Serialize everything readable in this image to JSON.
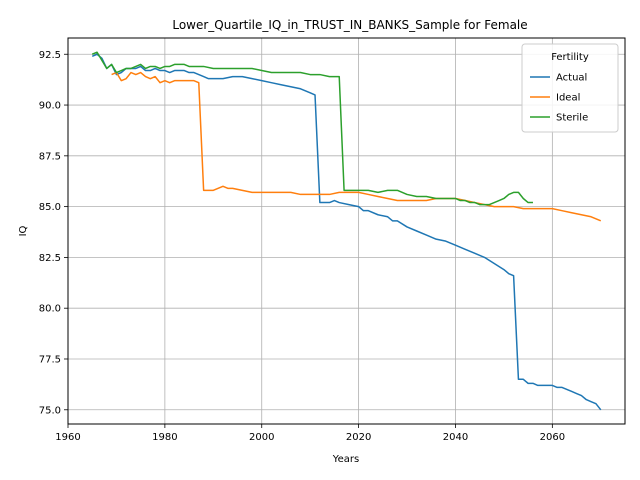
{
  "chart_data": {
    "type": "line",
    "title": "Lower_Quartile_IQ_in_TRUST_IN_BANKS_Sample for Female",
    "xlabel": "Years",
    "ylabel": "IQ",
    "xlim": [
      1960,
      2075
    ],
    "ylim": [
      74.3,
      93.3
    ],
    "xticks": [
      1960,
      1980,
      2000,
      2020,
      2040,
      2060
    ],
    "yticks": [
      75.0,
      77.5,
      80.0,
      82.5,
      85.0,
      87.5,
      90.0,
      92.5
    ],
    "ytick_labels": [
      "75.0",
      "77.5",
      "80.0",
      "82.5",
      "85.0",
      "87.5",
      "90.0",
      "92.5"
    ],
    "grid": true,
    "legend": {
      "title": "Fertility",
      "placement": "top-right"
    },
    "series": [
      {
        "name": "Actual",
        "color": "#1f77b4",
        "points": [
          [
            1965,
            92.4
          ],
          [
            1966,
            92.5
          ],
          [
            1967,
            92.3
          ],
          [
            1968,
            91.8
          ],
          [
            1969,
            92.0
          ],
          [
            1970,
            91.5
          ],
          [
            1971,
            91.6
          ],
          [
            1972,
            91.8
          ],
          [
            1973,
            91.8
          ],
          [
            1974,
            91.8
          ],
          [
            1975,
            91.9
          ],
          [
            1976,
            91.7
          ],
          [
            1977,
            91.7
          ],
          [
            1978,
            91.8
          ],
          [
            1979,
            91.7
          ],
          [
            1980,
            91.7
          ],
          [
            1981,
            91.6
          ],
          [
            1982,
            91.7
          ],
          [
            1983,
            91.7
          ],
          [
            1984,
            91.7
          ],
          [
            1985,
            91.6
          ],
          [
            1986,
            91.6
          ],
          [
            1987,
            91.5
          ],
          [
            1988,
            91.4
          ],
          [
            1989,
            91.3
          ],
          [
            1990,
            91.3
          ],
          [
            1992,
            91.3
          ],
          [
            1994,
            91.4
          ],
          [
            1996,
            91.4
          ],
          [
            1998,
            91.3
          ],
          [
            2000,
            91.2
          ],
          [
            2002,
            91.1
          ],
          [
            2004,
            91.0
          ],
          [
            2006,
            90.9
          ],
          [
            2008,
            90.8
          ],
          [
            2010,
            90.6
          ],
          [
            2011,
            90.5
          ],
          [
            2012,
            85.2
          ],
          [
            2013,
            85.2
          ],
          [
            2014,
            85.2
          ],
          [
            2015,
            85.3
          ],
          [
            2016,
            85.2
          ],
          [
            2018,
            85.1
          ],
          [
            2020,
            85.0
          ],
          [
            2021,
            84.8
          ],
          [
            2022,
            84.8
          ],
          [
            2024,
            84.6
          ],
          [
            2026,
            84.5
          ],
          [
            2027,
            84.3
          ],
          [
            2028,
            84.3
          ],
          [
            2030,
            84.0
          ],
          [
            2032,
            83.8
          ],
          [
            2034,
            83.6
          ],
          [
            2036,
            83.4
          ],
          [
            2038,
            83.3
          ],
          [
            2040,
            83.1
          ],
          [
            2042,
            82.9
          ],
          [
            2044,
            82.7
          ],
          [
            2046,
            82.5
          ],
          [
            2048,
            82.2
          ],
          [
            2050,
            81.9
          ],
          [
            2051,
            81.7
          ],
          [
            2052,
            81.6
          ],
          [
            2053,
            76.5
          ],
          [
            2054,
            76.5
          ],
          [
            2055,
            76.3
          ],
          [
            2056,
            76.3
          ],
          [
            2057,
            76.2
          ],
          [
            2058,
            76.2
          ],
          [
            2059,
            76.2
          ],
          [
            2060,
            76.2
          ],
          [
            2061,
            76.1
          ],
          [
            2062,
            76.1
          ],
          [
            2063,
            76.0
          ],
          [
            2064,
            75.9
          ],
          [
            2065,
            75.8
          ],
          [
            2066,
            75.7
          ],
          [
            2067,
            75.5
          ],
          [
            2068,
            75.4
          ],
          [
            2069,
            75.3
          ],
          [
            2070,
            75.0
          ]
        ]
      },
      {
        "name": "Ideal",
        "color": "#ff7f0e",
        "points": [
          [
            1969,
            91.5
          ],
          [
            1970,
            91.6
          ],
          [
            1971,
            91.2
          ],
          [
            1972,
            91.3
          ],
          [
            1973,
            91.6
          ],
          [
            1974,
            91.5
          ],
          [
            1975,
            91.6
          ],
          [
            1976,
            91.4
          ],
          [
            1977,
            91.3
          ],
          [
            1978,
            91.4
          ],
          [
            1979,
            91.1
          ],
          [
            1980,
            91.2
          ],
          [
            1981,
            91.1
          ],
          [
            1982,
            91.2
          ],
          [
            1983,
            91.2
          ],
          [
            1984,
            91.2
          ],
          [
            1985,
            91.2
          ],
          [
            1986,
            91.2
          ],
          [
            1987,
            91.1
          ],
          [
            1988,
            85.8
          ],
          [
            1989,
            85.8
          ],
          [
            1990,
            85.8
          ],
          [
            1991,
            85.9
          ],
          [
            1992,
            86.0
          ],
          [
            1993,
            85.9
          ],
          [
            1994,
            85.9
          ],
          [
            1996,
            85.8
          ],
          [
            1998,
            85.7
          ],
          [
            2000,
            85.7
          ],
          [
            2002,
            85.7
          ],
          [
            2004,
            85.7
          ],
          [
            2006,
            85.7
          ],
          [
            2008,
            85.6
          ],
          [
            2010,
            85.6
          ],
          [
            2012,
            85.6
          ],
          [
            2014,
            85.6
          ],
          [
            2016,
            85.7
          ],
          [
            2018,
            85.7
          ],
          [
            2020,
            85.7
          ],
          [
            2022,
            85.6
          ],
          [
            2024,
            85.5
          ],
          [
            2026,
            85.4
          ],
          [
            2028,
            85.3
          ],
          [
            2030,
            85.3
          ],
          [
            2032,
            85.3
          ],
          [
            2034,
            85.3
          ],
          [
            2036,
            85.4
          ],
          [
            2038,
            85.4
          ],
          [
            2040,
            85.4
          ],
          [
            2042,
            85.3
          ],
          [
            2044,
            85.2
          ],
          [
            2046,
            85.1
          ],
          [
            2048,
            85.0
          ],
          [
            2050,
            85.0
          ],
          [
            2052,
            85.0
          ],
          [
            2054,
            84.9
          ],
          [
            2056,
            84.9
          ],
          [
            2058,
            84.9
          ],
          [
            2060,
            84.9
          ],
          [
            2062,
            84.8
          ],
          [
            2064,
            84.7
          ],
          [
            2066,
            84.6
          ],
          [
            2068,
            84.5
          ],
          [
            2070,
            84.3
          ]
        ]
      },
      {
        "name": "Sterile",
        "color": "#2ca02c",
        "points": [
          [
            1965,
            92.5
          ],
          [
            1966,
            92.6
          ],
          [
            1967,
            92.2
          ],
          [
            1968,
            91.8
          ],
          [
            1969,
            92.0
          ],
          [
            1970,
            91.6
          ],
          [
            1971,
            91.7
          ],
          [
            1972,
            91.8
          ],
          [
            1973,
            91.8
          ],
          [
            1974,
            91.9
          ],
          [
            1975,
            92.0
          ],
          [
            1976,
            91.8
          ],
          [
            1977,
            91.9
          ],
          [
            1978,
            91.9
          ],
          [
            1979,
            91.8
          ],
          [
            1980,
            91.9
          ],
          [
            1981,
            91.9
          ],
          [
            1982,
            92.0
          ],
          [
            1983,
            92.0
          ],
          [
            1984,
            92.0
          ],
          [
            1985,
            91.9
          ],
          [
            1986,
            91.9
          ],
          [
            1988,
            91.9
          ],
          [
            1990,
            91.8
          ],
          [
            1992,
            91.8
          ],
          [
            1994,
            91.8
          ],
          [
            1996,
            91.8
          ],
          [
            1998,
            91.8
          ],
          [
            2000,
            91.7
          ],
          [
            2002,
            91.6
          ],
          [
            2004,
            91.6
          ],
          [
            2006,
            91.6
          ],
          [
            2008,
            91.6
          ],
          [
            2010,
            91.5
          ],
          [
            2012,
            91.5
          ],
          [
            2014,
            91.4
          ],
          [
            2016,
            91.4
          ],
          [
            2017,
            85.8
          ],
          [
            2018,
            85.8
          ],
          [
            2020,
            85.8
          ],
          [
            2022,
            85.8
          ],
          [
            2024,
            85.7
          ],
          [
            2026,
            85.8
          ],
          [
            2027,
            85.8
          ],
          [
            2028,
            85.8
          ],
          [
            2030,
            85.6
          ],
          [
            2032,
            85.5
          ],
          [
            2034,
            85.5
          ],
          [
            2036,
            85.4
          ],
          [
            2038,
            85.4
          ],
          [
            2040,
            85.4
          ],
          [
            2041,
            85.3
          ],
          [
            2042,
            85.3
          ],
          [
            2043,
            85.2
          ],
          [
            2044,
            85.2
          ],
          [
            2045,
            85.1
          ],
          [
            2046,
            85.1
          ],
          [
            2047,
            85.1
          ],
          [
            2048,
            85.2
          ],
          [
            2049,
            85.3
          ],
          [
            2050,
            85.4
          ],
          [
            2051,
            85.6
          ],
          [
            2052,
            85.7
          ],
          [
            2053,
            85.7
          ],
          [
            2054,
            85.4
          ],
          [
            2055,
            85.2
          ],
          [
            2056,
            85.2
          ]
        ]
      }
    ]
  }
}
